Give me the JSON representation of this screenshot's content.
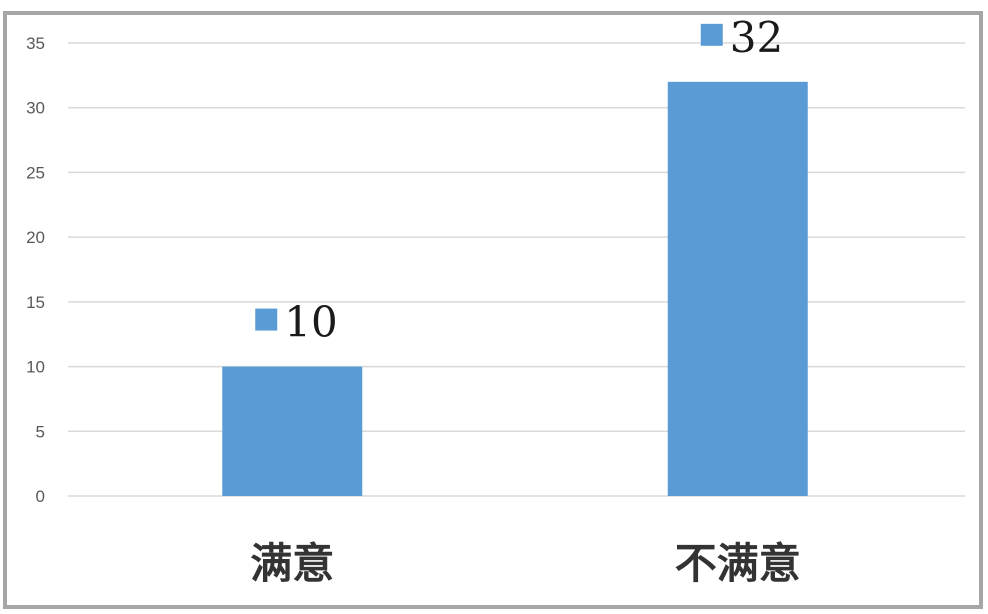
{
  "chart_data": {
    "type": "bar",
    "categories": [
      "满意",
      "不满意"
    ],
    "values": [
      10,
      32
    ],
    "ylim": [
      0,
      35
    ],
    "yticks": [
      0,
      5,
      10,
      15,
      20,
      25,
      30,
      35
    ],
    "grid": true,
    "data_labels": true,
    "bar_color": "#5b9bd5",
    "title": "",
    "xlabel": "",
    "ylabel": ""
  }
}
